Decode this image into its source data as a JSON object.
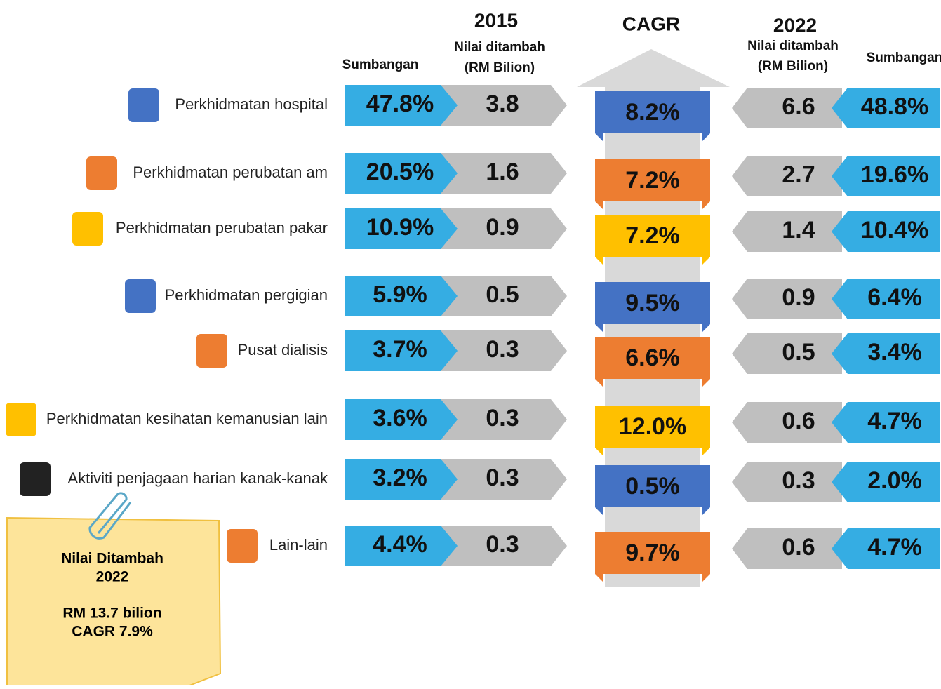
{
  "headers": {
    "year_2015": "2015",
    "nilai_2015": "Nilai ditambah",
    "unit_2015": "(RM Bilion)",
    "share_2015": "Sumbangan",
    "cagr": "CAGR",
    "year_2022": "2022",
    "nilai_2022": "Nilai ditambah",
    "unit_2022": "(RM Bilion)",
    "share_2022": "Sumbangan"
  },
  "rows": [
    {
      "label": "Perkhidmatan hospital",
      "share_2015": "47.8%",
      "value_2015": "3.8",
      "cagr": "8.2%",
      "value_2022": "6.6",
      "share_2022": "48.8%"
    },
    {
      "label": "Perkhidmatan perubatan am",
      "share_2015": "20.5%",
      "value_2015": "1.6",
      "cagr": "7.2%",
      "value_2022": "2.7",
      "share_2022": "19.6%"
    },
    {
      "label": "Perkhidmatan perubatan pakar",
      "share_2015": "10.9%",
      "value_2015": "0.9",
      "cagr": "7.2%",
      "value_2022": "1.4",
      "share_2022": "10.4%"
    },
    {
      "label": "Perkhidmatan pergigian",
      "share_2015": "5.9%",
      "value_2015": "0.5",
      "cagr": "9.5%",
      "value_2022": "0.9",
      "share_2022": "6.4%"
    },
    {
      "label": "Pusat dialisis",
      "share_2015": "3.7%",
      "value_2015": "0.3",
      "cagr": "6.6%",
      "value_2022": "0.5",
      "share_2022": "3.4%"
    },
    {
      "label": "Perkhidmatan kesihatan kemanusian lain",
      "share_2015": "3.6%",
      "value_2015": "0.3",
      "cagr": "12.0%",
      "value_2022": "0.6",
      "share_2022": "4.7%"
    },
    {
      "label": "Aktiviti penjagaan harian kanak-kanak",
      "share_2015": "3.2%",
      "value_2015": "0.3",
      "cagr": "0.5%",
      "value_2022": "0.3",
      "share_2022": "2.0%"
    },
    {
      "label": "Lain-lain",
      "share_2015": "4.4%",
      "value_2015": "0.3",
      "cagr": "9.7%",
      "value_2022": "0.6",
      "share_2022": "4.7%"
    }
  ],
  "note": {
    "title": "Nilai Ditambah",
    "year": "2022",
    "total": "RM 13.7 bilion",
    "cagr": "CAGR 7.9%"
  }
}
